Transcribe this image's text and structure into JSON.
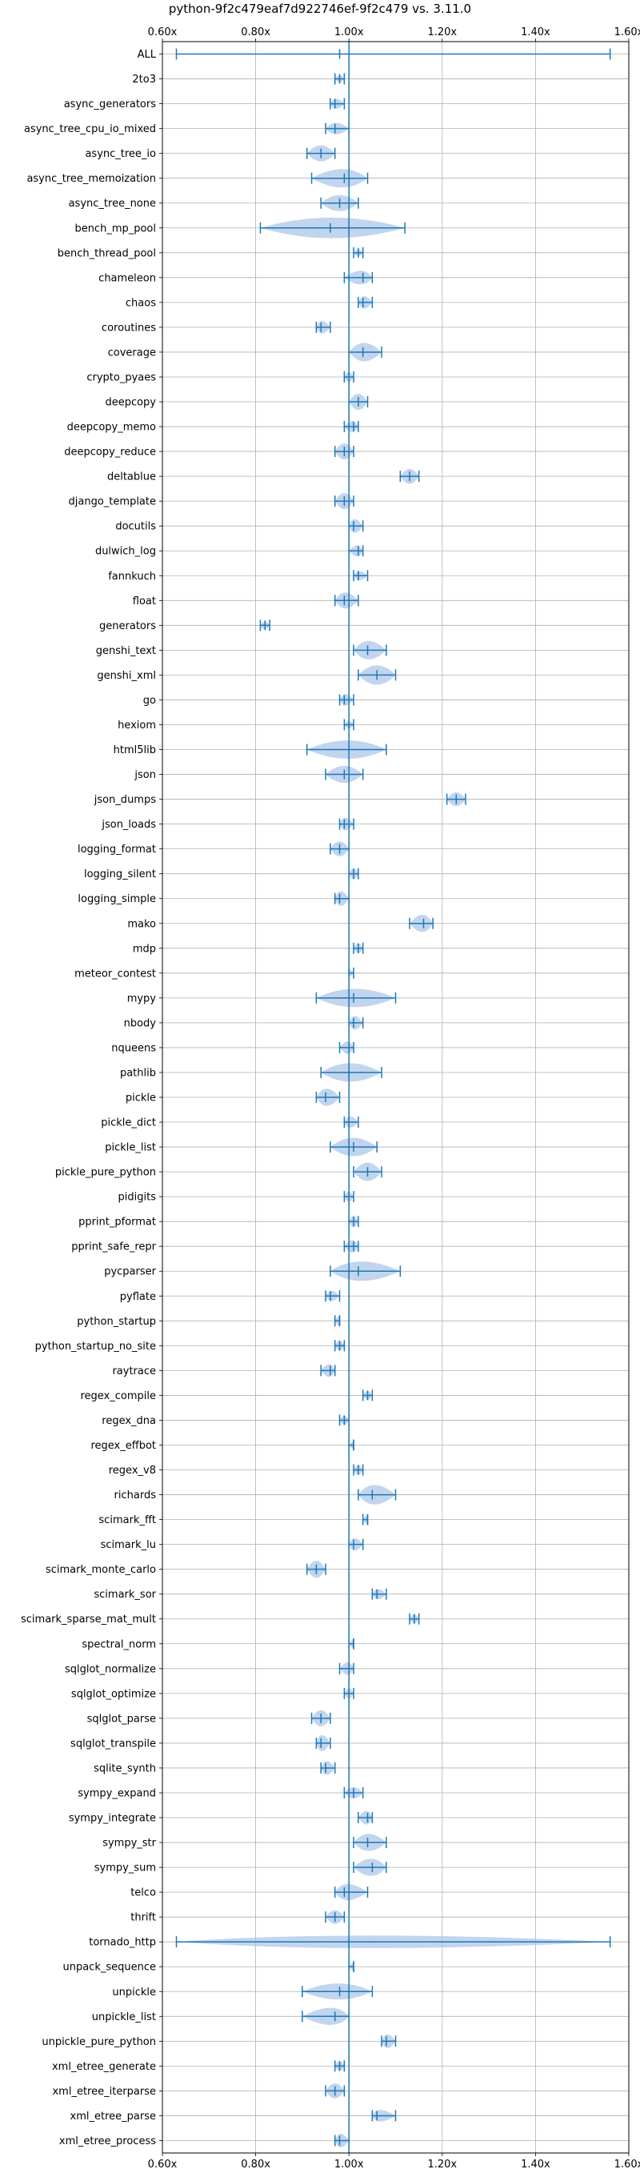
{
  "chart_data": {
    "type": "violin",
    "title": "python-9f2c479eaf7d922746ef-9f2c479 vs. 3.11.0",
    "xlabel": "",
    "ylabel": "",
    "xlim": [
      0.6,
      1.6
    ],
    "x_ticks": [
      0.6,
      0.8,
      1.0,
      1.2,
      1.4,
      1.6
    ],
    "x_tick_labels": [
      "0.60x",
      "0.80x",
      "1.00x",
      "1.20x",
      "1.40x",
      "1.60x"
    ],
    "grid": true,
    "reference_line": 1.0,
    "color": "#1f77b4",
    "violin_color": "#aec7e8",
    "series": [
      {
        "name": "ALL",
        "min": 0.63,
        "median": 0.98,
        "max": 1.56,
        "width": 0.04
      },
      {
        "name": "2to3",
        "min": 0.97,
        "median": 0.98,
        "max": 0.99,
        "width": 0.3
      },
      {
        "name": "async_generators",
        "min": 0.96,
        "median": 0.97,
        "max": 0.99,
        "width": 0.45
      },
      {
        "name": "async_tree_cpu_io_mixed",
        "min": 0.95,
        "median": 0.97,
        "max": 1.0,
        "width": 0.5
      },
      {
        "name": "async_tree_io",
        "min": 0.91,
        "median": 0.94,
        "max": 0.97,
        "width": 0.7
      },
      {
        "name": "async_tree_memoization",
        "min": 0.92,
        "median": 0.99,
        "max": 1.04,
        "width": 0.8
      },
      {
        "name": "async_tree_none",
        "min": 0.94,
        "median": 0.98,
        "max": 1.02,
        "width": 0.7
      },
      {
        "name": "bench_mp_pool",
        "min": 0.81,
        "median": 0.96,
        "max": 1.12,
        "width": 0.9
      },
      {
        "name": "bench_thread_pool",
        "min": 1.01,
        "median": 1.02,
        "max": 1.03,
        "width": 0.3
      },
      {
        "name": "chameleon",
        "min": 0.99,
        "median": 1.03,
        "max": 1.05,
        "width": 0.6
      },
      {
        "name": "chaos",
        "min": 1.02,
        "median": 1.03,
        "max": 1.05,
        "width": 0.55
      },
      {
        "name": "coroutines",
        "min": 0.93,
        "median": 0.94,
        "max": 0.96,
        "width": 0.55
      },
      {
        "name": "coverage",
        "min": 1.0,
        "median": 1.03,
        "max": 1.07,
        "width": 0.8
      },
      {
        "name": "crypto_pyaes",
        "min": 0.99,
        "median": 1.0,
        "max": 1.01,
        "width": 0.45
      },
      {
        "name": "deepcopy",
        "min": 1.0,
        "median": 1.02,
        "max": 1.04,
        "width": 0.7
      },
      {
        "name": "deepcopy_memo",
        "min": 0.99,
        "median": 1.01,
        "max": 1.02,
        "width": 0.5
      },
      {
        "name": "deepcopy_reduce",
        "min": 0.97,
        "median": 0.99,
        "max": 1.01,
        "width": 0.7
      },
      {
        "name": "deltablue",
        "min": 1.11,
        "median": 1.13,
        "max": 1.15,
        "width": 0.65
      },
      {
        "name": "django_template",
        "min": 0.97,
        "median": 0.99,
        "max": 1.01,
        "width": 0.7
      },
      {
        "name": "docutils",
        "min": 1.0,
        "median": 1.01,
        "max": 1.03,
        "width": 0.6
      },
      {
        "name": "dulwich_log",
        "min": 1.0,
        "median": 1.02,
        "max": 1.03,
        "width": 0.5
      },
      {
        "name": "fannkuch",
        "min": 1.01,
        "median": 1.02,
        "max": 1.04,
        "width": 0.4
      },
      {
        "name": "float",
        "min": 0.97,
        "median": 0.99,
        "max": 1.02,
        "width": 0.7
      },
      {
        "name": "generators",
        "min": 0.81,
        "median": 0.82,
        "max": 0.83,
        "width": 0.35
      },
      {
        "name": "genshi_text",
        "min": 1.01,
        "median": 1.04,
        "max": 1.08,
        "width": 0.8
      },
      {
        "name": "genshi_xml",
        "min": 1.02,
        "median": 1.06,
        "max": 1.1,
        "width": 0.85
      },
      {
        "name": "go",
        "min": 0.98,
        "median": 0.99,
        "max": 1.01,
        "width": 0.5
      },
      {
        "name": "hexiom",
        "min": 0.99,
        "median": 1.0,
        "max": 1.01,
        "width": 0.35
      },
      {
        "name": "html5lib",
        "min": 0.91,
        "median": 1.0,
        "max": 1.08,
        "width": 0.8
      },
      {
        "name": "json",
        "min": 0.95,
        "median": 0.99,
        "max": 1.03,
        "width": 0.75
      },
      {
        "name": "json_dumps",
        "min": 1.21,
        "median": 1.23,
        "max": 1.25,
        "width": 0.6
      },
      {
        "name": "json_loads",
        "min": 0.98,
        "median": 0.99,
        "max": 1.01,
        "width": 0.55
      },
      {
        "name": "logging_format",
        "min": 0.96,
        "median": 0.98,
        "max": 1.0,
        "width": 0.65
      },
      {
        "name": "logging_silent",
        "min": 1.0,
        "median": 1.01,
        "max": 1.02,
        "width": 0.5
      },
      {
        "name": "logging_simple",
        "min": 0.97,
        "median": 0.98,
        "max": 1.0,
        "width": 0.65
      },
      {
        "name": "mako",
        "min": 1.13,
        "median": 1.16,
        "max": 1.18,
        "width": 0.75
      },
      {
        "name": "mdp",
        "min": 1.01,
        "median": 1.02,
        "max": 1.03,
        "width": 0.45
      },
      {
        "name": "meteor_contest",
        "min": 1.0,
        "median": 1.0,
        "max": 1.01,
        "width": 0.3
      },
      {
        "name": "mypy",
        "min": 0.93,
        "median": 1.01,
        "max": 1.1,
        "width": 0.8
      },
      {
        "name": "nbody",
        "min": 1.0,
        "median": 1.01,
        "max": 1.03,
        "width": 0.6
      },
      {
        "name": "nqueens",
        "min": 0.98,
        "median": 1.0,
        "max": 1.01,
        "width": 0.55
      },
      {
        "name": "pathlib",
        "min": 0.94,
        "median": 1.0,
        "max": 1.07,
        "width": 0.8
      },
      {
        "name": "pickle",
        "min": 0.93,
        "median": 0.95,
        "max": 0.98,
        "width": 0.75
      },
      {
        "name": "pickle_dict",
        "min": 0.99,
        "median": 1.0,
        "max": 1.02,
        "width": 0.5
      },
      {
        "name": "pickle_list",
        "min": 0.96,
        "median": 1.01,
        "max": 1.06,
        "width": 0.8
      },
      {
        "name": "pickle_pure_python",
        "min": 1.01,
        "median": 1.04,
        "max": 1.07,
        "width": 0.8
      },
      {
        "name": "pidigits",
        "min": 0.99,
        "median": 1.0,
        "max": 1.01,
        "width": 0.45
      },
      {
        "name": "pprint_pformat",
        "min": 1.0,
        "median": 1.01,
        "max": 1.02,
        "width": 0.5
      },
      {
        "name": "pprint_safe_repr",
        "min": 0.99,
        "median": 1.01,
        "max": 1.02,
        "width": 0.55
      },
      {
        "name": "pycparser",
        "min": 0.96,
        "median": 1.02,
        "max": 1.11,
        "width": 0.85
      },
      {
        "name": "pyflate",
        "min": 0.95,
        "median": 0.96,
        "max": 0.98,
        "width": 0.45
      },
      {
        "name": "python_startup",
        "min": 0.97,
        "median": 0.98,
        "max": 0.98,
        "width": 0.4
      },
      {
        "name": "python_startup_no_site",
        "min": 0.97,
        "median": 0.98,
        "max": 0.99,
        "width": 0.45
      },
      {
        "name": "raytrace",
        "min": 0.94,
        "median": 0.96,
        "max": 0.97,
        "width": 0.55
      },
      {
        "name": "regex_compile",
        "min": 1.03,
        "median": 1.04,
        "max": 1.05,
        "width": 0.4
      },
      {
        "name": "regex_dna",
        "min": 0.98,
        "median": 0.99,
        "max": 1.0,
        "width": 0.4
      },
      {
        "name": "regex_effbot",
        "min": 1.0,
        "median": 1.01,
        "max": 1.01,
        "width": 0.3
      },
      {
        "name": "regex_v8",
        "min": 1.01,
        "median": 1.02,
        "max": 1.03,
        "width": 0.45
      },
      {
        "name": "richards",
        "min": 1.02,
        "median": 1.05,
        "max": 1.1,
        "width": 0.85
      },
      {
        "name": "scimark_fft",
        "min": 1.03,
        "median": 1.04,
        "max": 1.04,
        "width": 0.35
      },
      {
        "name": "scimark_lu",
        "min": 1.0,
        "median": 1.01,
        "max": 1.03,
        "width": 0.55
      },
      {
        "name": "scimark_monte_carlo",
        "min": 0.91,
        "median": 0.93,
        "max": 0.95,
        "width": 0.75
      },
      {
        "name": "scimark_sor",
        "min": 1.05,
        "median": 1.06,
        "max": 1.08,
        "width": 0.45
      },
      {
        "name": "scimark_sparse_mat_mult",
        "min": 1.13,
        "median": 1.14,
        "max": 1.15,
        "width": 0.4
      },
      {
        "name": "spectral_norm",
        "min": 1.0,
        "median": 1.01,
        "max": 1.01,
        "width": 0.35
      },
      {
        "name": "sqlglot_normalize",
        "min": 0.98,
        "median": 1.0,
        "max": 1.01,
        "width": 0.55
      },
      {
        "name": "sqlglot_optimize",
        "min": 0.99,
        "median": 1.0,
        "max": 1.01,
        "width": 0.45
      },
      {
        "name": "sqlglot_parse",
        "min": 0.92,
        "median": 0.94,
        "max": 0.96,
        "width": 0.7
      },
      {
        "name": "sqlglot_transpile",
        "min": 0.93,
        "median": 0.94,
        "max": 0.96,
        "width": 0.7
      },
      {
        "name": "sqlite_synth",
        "min": 0.94,
        "median": 0.95,
        "max": 0.97,
        "width": 0.6
      },
      {
        "name": "sympy_expand",
        "min": 0.99,
        "median": 1.01,
        "max": 1.03,
        "width": 0.5
      },
      {
        "name": "sympy_integrate",
        "min": 1.02,
        "median": 1.04,
        "max": 1.05,
        "width": 0.6
      },
      {
        "name": "sympy_str",
        "min": 1.01,
        "median": 1.04,
        "max": 1.08,
        "width": 0.75
      },
      {
        "name": "sympy_sum",
        "min": 1.01,
        "median": 1.05,
        "max": 1.08,
        "width": 0.75
      },
      {
        "name": "telco",
        "min": 0.97,
        "median": 0.99,
        "max": 1.04,
        "width": 0.7
      },
      {
        "name": "thrift",
        "min": 0.95,
        "median": 0.97,
        "max": 0.99,
        "width": 0.6
      },
      {
        "name": "tornado_http",
        "min": 0.63,
        "median": 1.0,
        "max": 1.56,
        "width": 0.55
      },
      {
        "name": "unpack_sequence",
        "min": 1.0,
        "median": 1.01,
        "max": 1.01,
        "width": 0.3
      },
      {
        "name": "unpickle",
        "min": 0.9,
        "median": 0.98,
        "max": 1.05,
        "width": 0.7
      },
      {
        "name": "unpickle_list",
        "min": 0.9,
        "median": 0.97,
        "max": 1.0,
        "width": 0.75
      },
      {
        "name": "unpickle_pure_python",
        "min": 1.07,
        "median": 1.08,
        "max": 1.1,
        "width": 0.6
      },
      {
        "name": "xml_etree_generate",
        "min": 0.97,
        "median": 0.98,
        "max": 0.99,
        "width": 0.45
      },
      {
        "name": "xml_etree_iterparse",
        "min": 0.95,
        "median": 0.97,
        "max": 0.99,
        "width": 0.65
      },
      {
        "name": "xml_etree_parse",
        "min": 1.05,
        "median": 1.06,
        "max": 1.1,
        "width": 0.5
      },
      {
        "name": "xml_etree_process",
        "min": 0.97,
        "median": 0.98,
        "max": 1.0,
        "width": 0.6
      }
    ]
  }
}
